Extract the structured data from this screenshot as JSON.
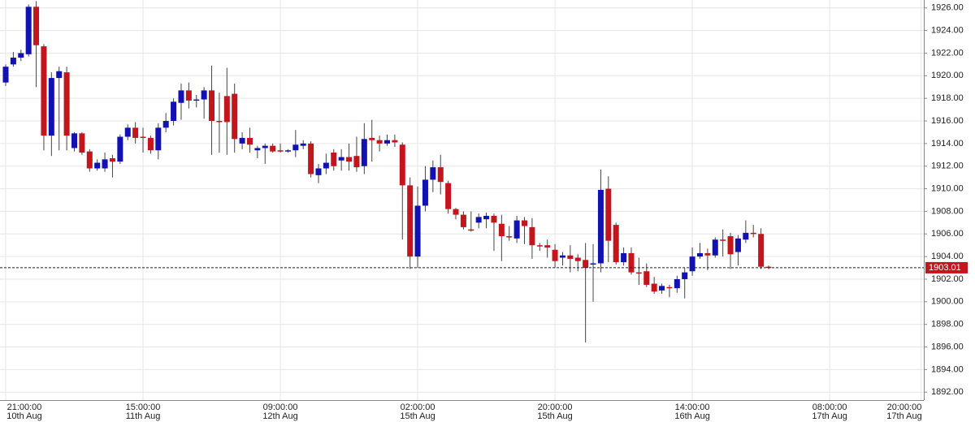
{
  "chart_data": {
    "type": "candlestick",
    "categories": [
      [
        "21:00:00",
        "10th Aug"
      ],
      null,
      null,
      null,
      null,
      null,
      null,
      null,
      null,
      null,
      null,
      null,
      null,
      null,
      null,
      null,
      null,
      null,
      [
        "15:00:00",
        "11th Aug"
      ],
      null,
      null,
      null,
      null,
      null,
      null,
      null,
      null,
      null,
      null,
      null,
      null,
      null,
      null,
      null,
      null,
      null,
      [
        "09:00:00",
        "12th Aug"
      ],
      null,
      null,
      null,
      null,
      null,
      null,
      null,
      null,
      null,
      null,
      null,
      null,
      null,
      null,
      null,
      null,
      null,
      [
        "02:00:00",
        "15th Aug"
      ],
      null,
      null,
      null,
      null,
      null,
      null,
      null,
      null,
      null,
      null,
      null,
      null,
      null,
      null,
      null,
      null,
      null,
      [
        "20:00:00",
        "15th Aug"
      ],
      null,
      null,
      null,
      null,
      null,
      null,
      null,
      null,
      null,
      null,
      null,
      null,
      null,
      null,
      null,
      null,
      null,
      [
        "14:00:00",
        "16th Aug"
      ],
      null,
      null,
      null,
      null,
      null,
      null,
      null,
      null,
      null,
      null,
      null,
      null,
      null,
      null,
      null,
      null,
      null,
      [
        "08:00:00",
        "17th Aug"
      ],
      null,
      null,
      null,
      null,
      null,
      null,
      null,
      null,
      null,
      null,
      null,
      [
        "20:00:00",
        "17th Aug"
      ]
    ],
    "open": [
      1919.4,
      1921.0,
      1921.6,
      1921.9,
      1926.1,
      1922.6,
      1914.7,
      1919.8,
      1920.3,
      1913.6,
      1914.9,
      1913.3,
      1911.8,
      1911.8,
      1912.7,
      1912.4,
      1914.6,
      1915.4,
      1914.6,
      1914.5,
      1913.4,
      1915.4,
      1916.0,
      1917.6,
      1918.7,
      1917.8,
      1917.9,
      1918.7,
      1916.0,
      1918.2,
      1918.4,
      1914.0,
      1914.5,
      1913.4,
      1913.6,
      1913.8,
      1913.4,
      1913.3,
      1913.4,
      1913.8,
      1914.0,
      1911.2,
      1911.8,
      1913.2,
      1912.5,
      1912.8,
      1912.9,
      1912.0,
      1914.5,
      1914.3,
      1914.0,
      1914.3,
      1913.9,
      1910.3,
      1904.0,
      1908.5,
      1910.8,
      1911.9,
      1910.5,
      1908.2,
      1907.7,
      1906.4,
      1907.0,
      1907.3,
      1907.6,
      1906.9,
      1905.8,
      1905.6,
      1907.2,
      1906.6,
      1905.0,
      1905.0,
      1904.6,
      1903.9,
      1904.1,
      1903.9,
      1903.7,
      1903.3,
      1903.4,
      1910.0,
      1906.8,
      1903.5,
      1904.3,
      1902.6,
      1902.7,
      1901.6,
      1901.0,
      1901.3,
      1901.2,
      1902.0,
      1902.7,
      1904.0,
      1904.3,
      1904.1,
      1905.5,
      1905.8,
      1904.4,
      1905.5,
      1906.1,
      1906.0,
      1903.1,
      null,
      null,
      null,
      null,
      null,
      null,
      null,
      null,
      null,
      null,
      null,
      null,
      null,
      null,
      null,
      null,
      null,
      null,
      null,
      null
    ],
    "high": [
      1921.0,
      1922.1,
      1922.3,
      1926.3,
      1926.6,
      1922.8,
      1920.3,
      1920.8,
      1920.8,
      1915.0,
      1915.0,
      1913.5,
      1912.6,
      1913.2,
      1913.0,
      1914.8,
      1915.7,
      1915.9,
      1915.4,
      1914.7,
      1915.8,
      1916.7,
      1918.0,
      1919.3,
      1919.4,
      1918.3,
      1919.0,
      1920.9,
      1918.5,
      1920.7,
      1919.3,
      1915.0,
      1915.4,
      1913.8,
      1914.0,
      1914.0,
      1914.0,
      1913.5,
      1915.2,
      1914.3,
      1914.2,
      1912.2,
      1913.1,
      1913.5,
      1913.5,
      1914.0,
      1914.6,
      1915.8,
      1916.1,
      1914.7,
      1914.8,
      1914.8,
      1914.1,
      1911.0,
      1910.2,
      1912.0,
      1912.5,
      1913.0,
      1910.7,
      1908.3,
      1908.0,
      1908.0,
      1907.8,
      1907.9,
      1907.8,
      1907.7,
      1906.7,
      1907.6,
      1907.5,
      1907.4,
      1905.2,
      1905.5,
      1905.1,
      1904.4,
      1905.0,
      1904.2,
      1905.2,
      1905.1,
      1911.7,
      1911.1,
      1907.0,
      1904.8,
      1904.8,
      1903.9,
      1903.4,
      1902.2,
      1901.6,
      1901.5,
      1902.3,
      1903.0,
      1904.8,
      1905.2,
      1904.7,
      1905.7,
      1906.4,
      1906.1,
      1905.9,
      1907.2,
      1906.8,
      1906.5,
      1903.2,
      null,
      null,
      null,
      null,
      null,
      null,
      null,
      null,
      null,
      null,
      null,
      null,
      null,
      null,
      null,
      null,
      null,
      null,
      null,
      null
    ],
    "low": [
      1919.1,
      1920.8,
      1921.3,
      1921.7,
      1919.0,
      1913.4,
      1912.9,
      1913.4,
      1913.4,
      1913.3,
      1913.0,
      1911.5,
      1911.6,
      1911.5,
      1911.0,
      1912.2,
      1914.3,
      1914.0,
      1913.2,
      1913.1,
      1912.6,
      1915.0,
      1915.6,
      1916.1,
      1917.1,
      1917.2,
      1916.2,
      1913.0,
      1913.2,
      1913.0,
      1913.2,
      1913.5,
      1913.2,
      1912.7,
      1912.2,
      1913.2,
      1913.2,
      1913.2,
      1912.8,
      1913.5,
      1911.0,
      1910.5,
      1911.3,
      1911.6,
      1911.6,
      1911.6,
      1911.5,
      1911.3,
      1912.4,
      1913.3,
      1913.8,
      1913.7,
      1905.5,
      1902.9,
      1903.0,
      1908.0,
      1909.7,
      1909.5,
      1907.8,
      1907.3,
      1906.4,
      1906.2,
      1906.5,
      1906.5,
      1904.5,
      1903.6,
      1905.4,
      1905.2,
      1905.1,
      1903.8,
      1904.5,
      1903.9,
      1903.0,
      1903.2,
      1902.6,
      1902.7,
      1896.4,
      1900.0,
      1902.6,
      1903.5,
      1903.3,
      1903.2,
      1902.4,
      1901.5,
      1901.3,
      1900.7,
      1900.7,
      1900.4,
      1900.8,
      1900.3,
      1902.3,
      1903.8,
      1902.8,
      1903.9,
      1904.0,
      1902.9,
      1903.2,
      1905.2,
      1905.7,
      1902.9,
      1902.9,
      null,
      null,
      null,
      null,
      null,
      null,
      null,
      null,
      null,
      null,
      null,
      null,
      null,
      null,
      null,
      null,
      null,
      null,
      null,
      null
    ],
    "close": [
      1920.8,
      1921.6,
      1922.0,
      1926.1,
      1922.7,
      1914.7,
      1919.8,
      1920.4,
      1914.7,
      1914.9,
      1913.2,
      1911.8,
      1912.3,
      1912.6,
      1912.4,
      1914.6,
      1915.4,
      1914.5,
      1914.5,
      1913.4,
      1915.4,
      1916.0,
      1917.7,
      1918.7,
      1917.8,
      1917.9,
      1918.7,
      1916.0,
      1915.9,
      1915.9,
      1914.4,
      1914.5,
      1913.9,
      1913.6,
      1913.8,
      1913.3,
      1913.3,
      1913.4,
      1913.9,
      1914.0,
      1911.3,
      1911.8,
      1912.3,
      1912.0,
      1912.8,
      1912.4,
      1911.9,
      1914.4,
      1914.3,
      1914.0,
      1914.3,
      1914.1,
      1910.3,
      1904.0,
      1908.5,
      1910.8,
      1911.9,
      1910.6,
      1908.2,
      1907.7,
      1906.6,
      1906.3,
      1907.5,
      1907.6,
      1907.0,
      1905.8,
      1905.7,
      1907.2,
      1906.7,
      1905.0,
      1904.9,
      1904.8,
      1903.6,
      1904.1,
      1903.8,
      1903.6,
      1903.0,
      1903.4,
      1909.9,
      1905.4,
      1903.5,
      1904.3,
      1902.6,
      1902.5,
      1901.5,
      1900.9,
      1901.4,
      1901.2,
      1902.0,
      1902.6,
      1904.0,
      1904.3,
      1904.1,
      1905.5,
      1905.4,
      1904.2,
      1905.6,
      1906.1,
      1906.0,
      1903.1,
      1903.01,
      null,
      null,
      null,
      null,
      null,
      null,
      null,
      null,
      null,
      null,
      null,
      null,
      null,
      null,
      null,
      null,
      null,
      null,
      null,
      null
    ],
    "up_color": "#1212b4",
    "down_color": "#c4141c",
    "ylim": [
      1891.3,
      1926.7
    ],
    "yticks": [
      {
        "value": 1892,
        "label": "1892.00"
      },
      {
        "value": 1894,
        "label": "1894.00"
      },
      {
        "value": 1896,
        "label": "1896.00"
      },
      {
        "value": 1898,
        "label": "1898.00"
      },
      {
        "value": 1900,
        "label": "1900.00"
      },
      {
        "value": 1902,
        "label": "1902.00"
      },
      {
        "value": 1904,
        "label": "1904.00"
      },
      {
        "value": 1906,
        "label": "1906.00"
      },
      {
        "value": 1908,
        "label": "1908.00"
      },
      {
        "value": 1910,
        "label": "1910.00"
      },
      {
        "value": 1912,
        "label": "1912.00"
      },
      {
        "value": 1914,
        "label": "1914.00"
      },
      {
        "value": 1916,
        "label": "1916.00"
      },
      {
        "value": 1918,
        "label": "1918.00"
      },
      {
        "value": 1920,
        "label": "1920.00"
      },
      {
        "value": 1922,
        "label": "1922.00"
      },
      {
        "value": 1924,
        "label": "1924.00"
      },
      {
        "value": 1926,
        "label": "1926.00"
      }
    ],
    "last_price": 1903.01,
    "last_price_color": "#c4141c",
    "grid": true
  }
}
